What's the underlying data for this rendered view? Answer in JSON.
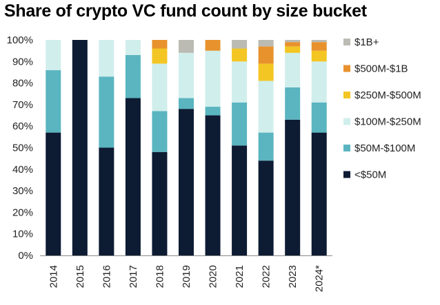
{
  "chart_data": {
    "type": "bar",
    "stacked": true,
    "title": "Share of crypto VC fund count by size bucket",
    "categories": [
      "2014",
      "2015",
      "2016",
      "2017",
      "2018",
      "2019",
      "2020",
      "2021",
      "2022",
      "2023",
      "2024*"
    ],
    "y_ticks": [
      "0%",
      "10%",
      "20%",
      "30%",
      "40%",
      "50%",
      "60%",
      "70%",
      "80%",
      "90%",
      "100%"
    ],
    "ylim": [
      0,
      100
    ],
    "legend_position": "right",
    "series": [
      {
        "name": "<$50M",
        "color": "#0d1b33",
        "values": [
          57,
          100,
          50,
          73,
          48,
          68,
          65,
          51,
          44,
          63,
          57
        ]
      },
      {
        "name": "$50M-$100M",
        "color": "#5ab5c0",
        "values": [
          29,
          0,
          33,
          20,
          19,
          5,
          4,
          20,
          13,
          15,
          14
        ]
      },
      {
        "name": "$100M-$250M",
        "color": "#d0eeec",
        "values": [
          14,
          0,
          17,
          7,
          22,
          21,
          26,
          19,
          24,
          16,
          19
        ]
      },
      {
        "name": "$250M-$500M",
        "color": "#f3c623",
        "values": [
          0,
          0,
          0,
          0,
          7,
          0,
          0,
          6,
          8,
          3,
          5
        ]
      },
      {
        "name": "$500M-$1B",
        "color": "#e8922e",
        "values": [
          0,
          0,
          0,
          0,
          4,
          0,
          5,
          0,
          8,
          2,
          4
        ]
      },
      {
        "name": "$1B+",
        "color": "#bbbbb3",
        "values": [
          0,
          0,
          0,
          0,
          0,
          6,
          0,
          4,
          3,
          1,
          1
        ]
      }
    ],
    "legend_order": [
      "$1B+",
      "$500M-$1B",
      "$250M-$500M",
      "$100M-$250M",
      "$50M-$100M",
      "<$50M"
    ]
  }
}
